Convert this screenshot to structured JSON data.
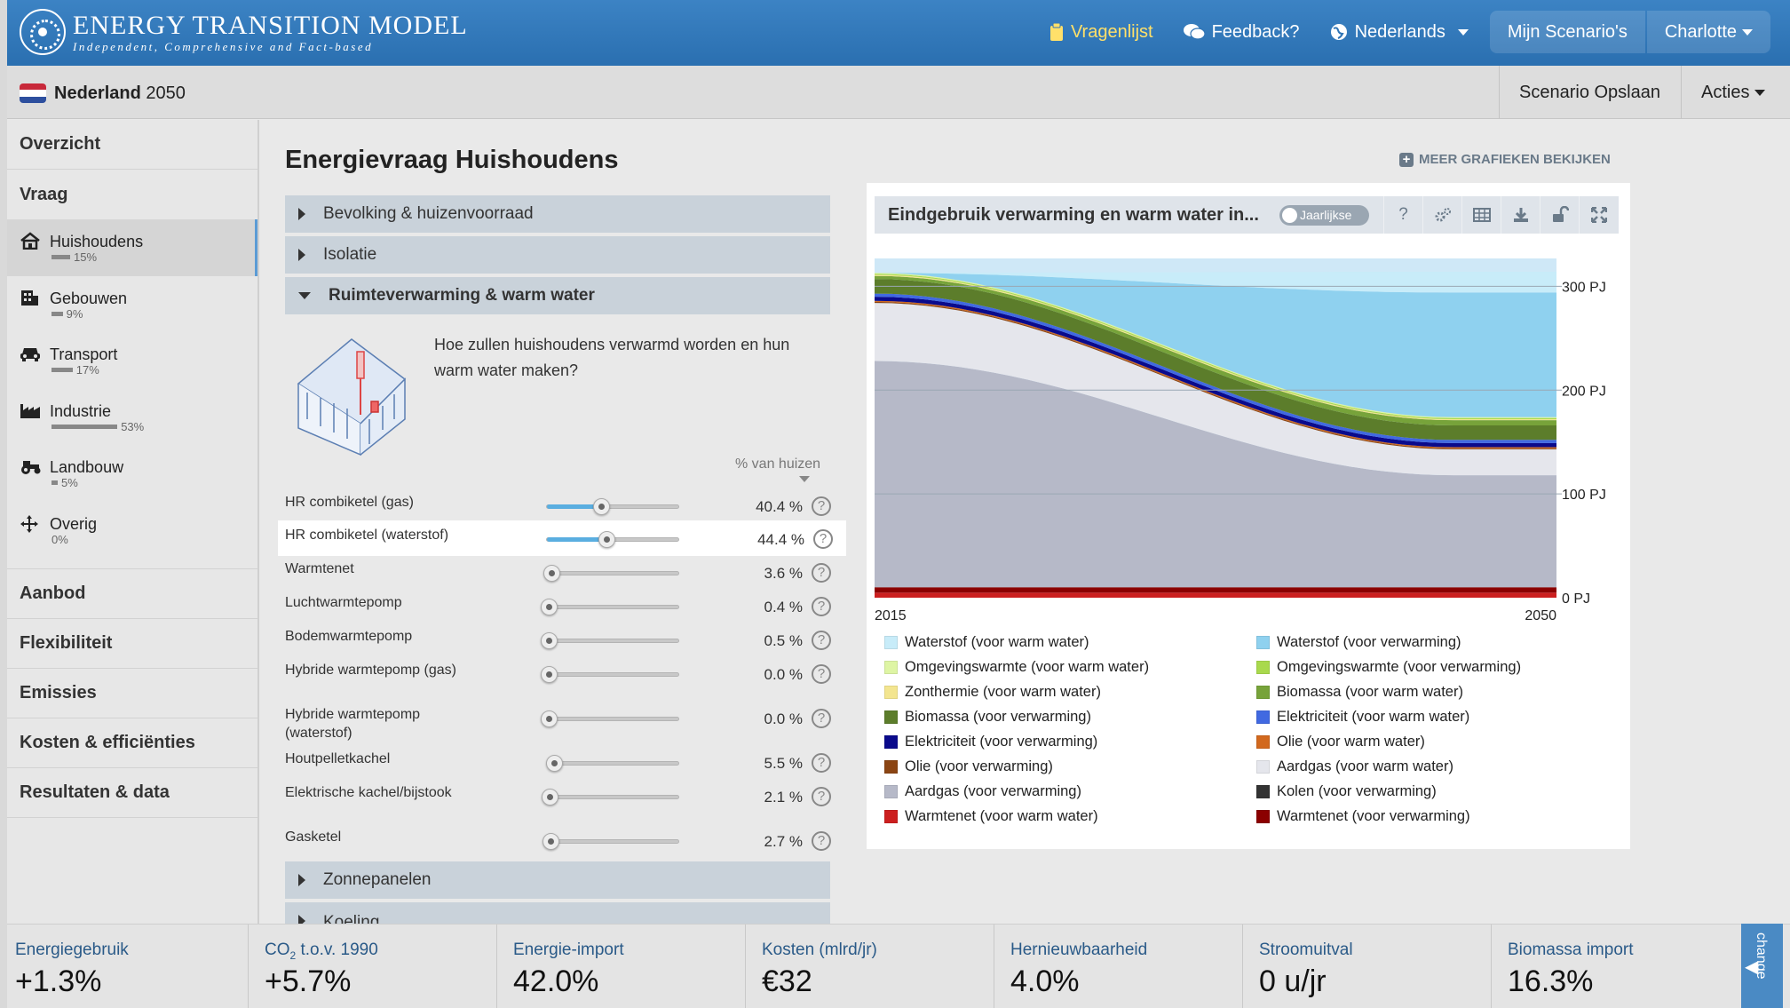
{
  "header": {
    "brand_title": "ENERGY TRANSITION MODEL",
    "brand_subtitle": "Independent, Comprehensive and Fact-based",
    "nav": {
      "questionnaire": "Vragenlijst",
      "feedback": "Feedback?",
      "language": "Nederlands",
      "my_scenarios": "Mijn Scenario's",
      "user": "Charlotte"
    }
  },
  "subbar": {
    "country": "Nederland",
    "year": "2050",
    "save": "Scenario Opslaan",
    "actions": "Acties"
  },
  "sidebar": {
    "overview": "Overzicht",
    "demand": "Vraag",
    "items": [
      {
        "label": "Huishoudens",
        "pct": "15%",
        "share": 0.15
      },
      {
        "label": "Gebouwen",
        "pct": "9%",
        "share": 0.09
      },
      {
        "label": "Transport",
        "pct": "17%",
        "share": 0.17
      },
      {
        "label": "Industrie",
        "pct": "53%",
        "share": 0.53
      },
      {
        "label": "Landbouw",
        "pct": "5%",
        "share": 0.05
      },
      {
        "label": "Overig",
        "pct": "0%",
        "share": 0.0
      }
    ],
    "sections": [
      "Aanbod",
      "Flexibiliteit",
      "Emissies",
      "Kosten & efficiënties",
      "Resultaten & data"
    ]
  },
  "main": {
    "title": "Energievraag Huishoudens",
    "more_charts": "MEER GRAFIEKEN BEKIJKEN",
    "accordion": [
      "Bevolking & huizenvoorraad",
      "Isolatie",
      "Ruimteverwarming & warm water",
      "Zonnepanelen",
      "Koeling"
    ],
    "question": "Hoe zullen huishoudens verwarmd worden en hun warm water maken?",
    "column_header": "% van huizen",
    "sliders": [
      {
        "label": "HR combiketel (gas)",
        "value": "40.4 %",
        "fraction": 0.404
      },
      {
        "label": "HR combiketel (waterstof)",
        "value": "44.4 %",
        "fraction": 0.444
      },
      {
        "label": "Warmtenet",
        "value": "3.6 %",
        "fraction": 0.036
      },
      {
        "label": "Luchtwarmtepomp",
        "value": "0.4 %",
        "fraction": 0.004
      },
      {
        "label": "Bodemwarmtepomp",
        "value": "0.5 %",
        "fraction": 0.005
      },
      {
        "label": "Hybride warmtepomp (gas)",
        "value": "0.0 %",
        "fraction": 0.0
      },
      {
        "label": "Hybride warmtepomp (waterstof)",
        "value": "0.0 %",
        "fraction": 0.0
      },
      {
        "label": "Houtpelletkachel",
        "value": "5.5 %",
        "fraction": 0.055
      },
      {
        "label": "Elektrische kachel/bijstook",
        "value": "2.1 %",
        "fraction": 0.021
      },
      {
        "label": "Gasketel",
        "value": "2.7 %",
        "fraction": 0.027
      }
    ],
    "help_glyph": "?"
  },
  "chart_panel": {
    "title": "Eindgebruik verwarming en warm water in...",
    "toggle_label": "Jaarlijkse",
    "tools": [
      "question-icon",
      "settings-icon",
      "table-icon",
      "download-icon",
      "unlock-icon",
      "fullscreen-icon"
    ]
  },
  "chart_data": {
    "type": "area",
    "x": [
      2015,
      2050
    ],
    "x_tick_labels": [
      "2015",
      "2050"
    ],
    "y_tick_labels": [
      "0 PJ",
      "100 PJ",
      "200 PJ",
      "300 PJ"
    ],
    "ylim": [
      0,
      320
    ],
    "grid": true,
    "legend_position": "bottom",
    "series": [
      {
        "name": "Warmtenet (voor warm water)",
        "color": "#cc1f1f",
        "values": [
          5,
          5
        ]
      },
      {
        "name": "Warmtenet (voor verwarming)",
        "color": "#8b0000",
        "values": [
          5,
          5
        ]
      },
      {
        "name": "Kolen (voor verwarming)",
        "color": "#333333",
        "values": [
          0,
          0
        ]
      },
      {
        "name": "Aardgas (voor verwarming)",
        "color": "#b6b9c8",
        "values": [
          218,
          108
        ]
      },
      {
        "name": "Aardgas (voor warm water)",
        "color": "#e5e6ec",
        "values": [
          56,
          25
        ]
      },
      {
        "name": "Olie (voor verwarming)",
        "color": "#8b4513",
        "values": [
          1,
          1
        ]
      },
      {
        "name": "Olie (voor warm water)",
        "color": "#d2691e",
        "values": [
          1,
          1
        ]
      },
      {
        "name": "Elektriciteit (voor verwarming)",
        "color": "#0a0a8c",
        "values": [
          4,
          4
        ]
      },
      {
        "name": "Elektriciteit (voor warm water)",
        "color": "#4169e1",
        "values": [
          3,
          3
        ]
      },
      {
        "name": "Biomassa (voor verwarming)",
        "color": "#5c7d2b",
        "values": [
          14,
          14
        ]
      },
      {
        "name": "Biomassa (voor warm water)",
        "color": "#77a33a",
        "values": [
          3,
          5
        ]
      },
      {
        "name": "Zonthermie (voor warm water)",
        "color": "#f3e58f",
        "values": [
          1,
          1
        ]
      },
      {
        "name": "Omgevingswarmte (voor verwarming)",
        "color": "#a9d94d",
        "values": [
          1,
          1
        ]
      },
      {
        "name": "Omgevingswarmte (voor warm water)",
        "color": "#def5a4",
        "values": [
          1,
          1
        ]
      },
      {
        "name": "Waterstof (voor verwarming)",
        "color": "#8fd1ef",
        "values": [
          0,
          120
        ]
      },
      {
        "name": "Waterstof (voor warm water)",
        "color": "#c8ecf9",
        "values": [
          0,
          20
        ]
      }
    ],
    "legend": [
      {
        "label": "Waterstof (voor warm water)",
        "color": "#c8ecf9"
      },
      {
        "label": "Waterstof (voor verwarming)",
        "color": "#8fd1ef"
      },
      {
        "label": "Omgevingswarmte (voor warm water)",
        "color": "#def5a4"
      },
      {
        "label": "Omgevingswarmte (voor verwarming)",
        "color": "#a9d94d"
      },
      {
        "label": "Zonthermie (voor warm water)",
        "color": "#f3e58f"
      },
      {
        "label": "Biomassa (voor warm water)",
        "color": "#77a33a"
      },
      {
        "label": "Biomassa (voor verwarming)",
        "color": "#5c7d2b"
      },
      {
        "label": "Elektriciteit (voor warm water)",
        "color": "#4169e1"
      },
      {
        "label": "Elektriciteit (voor verwarming)",
        "color": "#0a0a8c"
      },
      {
        "label": "Olie (voor warm water)",
        "color": "#d2691e"
      },
      {
        "label": "Olie (voor verwarming)",
        "color": "#8b4513"
      },
      {
        "label": "Aardgas (voor warm water)",
        "color": "#e5e6ec"
      },
      {
        "label": "Aardgas (voor verwarming)",
        "color": "#b6b9c8"
      },
      {
        "label": "Kolen (voor verwarming)",
        "color": "#333333"
      },
      {
        "label": "Warmtenet (voor warm water)",
        "color": "#cc1f1f"
      },
      {
        "label": "Warmtenet (voor verwarming)",
        "color": "#8b0000"
      }
    ]
  },
  "footer": {
    "kpis": [
      {
        "label": "Energiegebruik",
        "value": "+1.3%"
      },
      {
        "label_pre": "CO",
        "label_sub": "2",
        "label_post": " t.o.v. 1990",
        "value": "+5.7%"
      },
      {
        "label": "Energie-import",
        "value": "42.0%"
      },
      {
        "label": "Kosten (mlrd/jr)",
        "value": "€32"
      },
      {
        "label": "Hernieuwbaarheid",
        "value": "4.0%"
      },
      {
        "label": "Stroomuitval",
        "value": "0 u/jr"
      },
      {
        "label": "Biomassa import",
        "value": "16.3%"
      }
    ],
    "change_tab": "change"
  }
}
